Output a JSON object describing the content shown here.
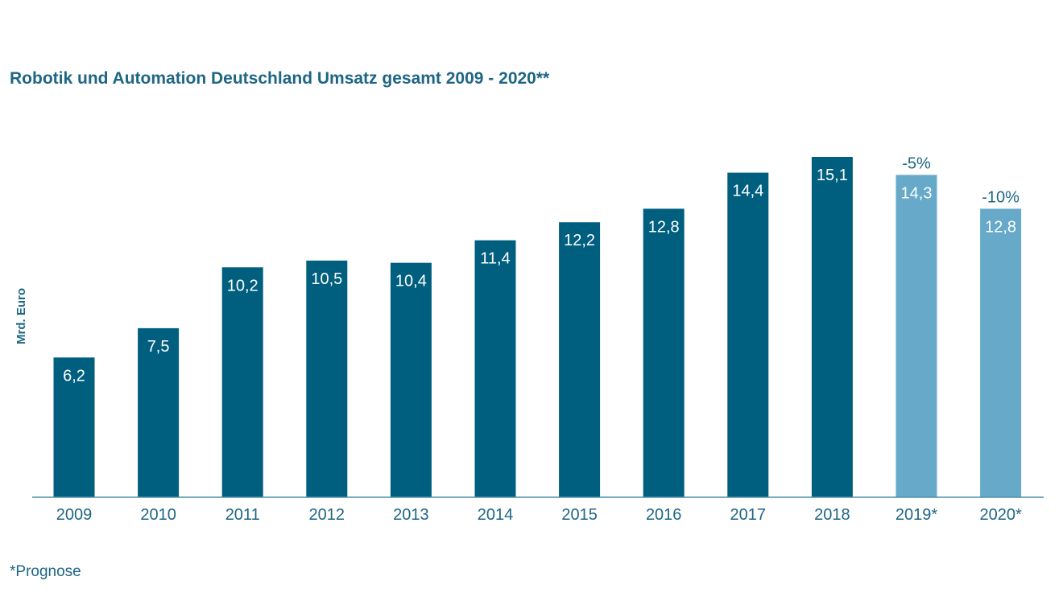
{
  "chart_data": {
    "type": "bar",
    "title": "Robotik und Automation Deutschland Umsatz gesamt 2009 - 2020**",
    "ylabel": "Mrd. Euro",
    "xlabel": "",
    "categories": [
      "2009",
      "2010",
      "2011",
      "2012",
      "2013",
      "2014",
      "2015",
      "2016",
      "2017",
      "2018",
      "2019*",
      "2020*"
    ],
    "values": [
      6.2,
      7.5,
      10.2,
      10.5,
      10.4,
      11.4,
      12.2,
      12.8,
      14.4,
      15.1,
      14.3,
      12.8
    ],
    "value_labels": [
      "6,2",
      "7,5",
      "10,2",
      "10,5",
      "10,4",
      "11,4",
      "12,2",
      "12,8",
      "14,4",
      "15,1",
      "14,3",
      "12,8"
    ],
    "forecast": [
      false,
      false,
      false,
      false,
      false,
      false,
      false,
      false,
      false,
      false,
      true,
      true
    ],
    "change_labels": [
      "",
      "",
      "",
      "",
      "",
      "",
      "",
      "",
      "",
      "",
      "-5%",
      "-10%"
    ],
    "ylim": [
      0,
      16
    ],
    "grid": false,
    "colors": {
      "actual": "#005f7f",
      "forecast": "#66a9c9",
      "axis": "#4f8fa8",
      "text": "#1e6684"
    },
    "footnote": "*Prognose"
  }
}
